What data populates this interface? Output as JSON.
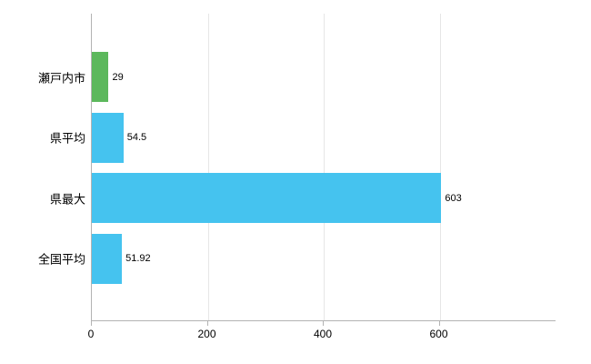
{
  "chart_data": {
    "type": "bar",
    "orientation": "horizontal",
    "categories": [
      "瀬戸内市",
      "県平均",
      "県最大",
      "全国平均"
    ],
    "values": [
      29,
      54.5,
      603,
      51.92
    ],
    "value_labels": [
      "29",
      "54.5",
      "603",
      "51.92"
    ],
    "bar_colors": [
      "#5cb85c",
      "#45c3ef",
      "#45c3ef",
      "#45c3ef"
    ],
    "xlim": [
      0,
      800
    ],
    "x_ticks": [
      0,
      200,
      400,
      600
    ],
    "x_tick_labels": [
      "0",
      "200",
      "400",
      "600"
    ],
    "grid": true,
    "legend": "none"
  },
  "colors": {
    "background": "#ffffff",
    "grid": "#e6e6e6",
    "axis": "#b3b3b3",
    "text": "#000000"
  }
}
